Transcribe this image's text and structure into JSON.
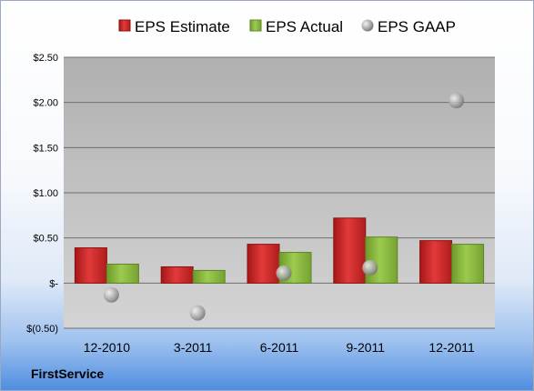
{
  "chart_data": {
    "type": "bar",
    "categories": [
      "12-2010",
      "3-2011",
      "6-2011",
      "9-2011",
      "12-2011"
    ],
    "series": [
      {
        "name": "EPS Estimate",
        "kind": "bar",
        "color": "#d42a2a",
        "values": [
          0.39,
          0.18,
          0.43,
          0.72,
          0.47
        ]
      },
      {
        "name": "EPS Actual",
        "kind": "bar",
        "color": "#8fb843",
        "values": [
          0.21,
          0.14,
          0.34,
          0.51,
          0.43
        ]
      },
      {
        "name": "EPS GAAP",
        "kind": "marker",
        "color": "#a8a8a8",
        "values": [
          -0.13,
          -0.33,
          0.11,
          0.17,
          2.02
        ]
      }
    ],
    "y_ticks": [
      {
        "value": 2.5,
        "label": "$2.50"
      },
      {
        "value": 2.0,
        "label": "$2.00"
      },
      {
        "value": 1.5,
        "label": "$1.50"
      },
      {
        "value": 1.0,
        "label": "$1.00"
      },
      {
        "value": 0.5,
        "label": "$0.50"
      },
      {
        "value": 0.0,
        "label": "$-"
      },
      {
        "value": -0.5,
        "label": "$(0.50)"
      }
    ],
    "ylim": [
      -0.5,
      2.5
    ],
    "grid": true,
    "legend_position": "top"
  },
  "company": "FirstService"
}
